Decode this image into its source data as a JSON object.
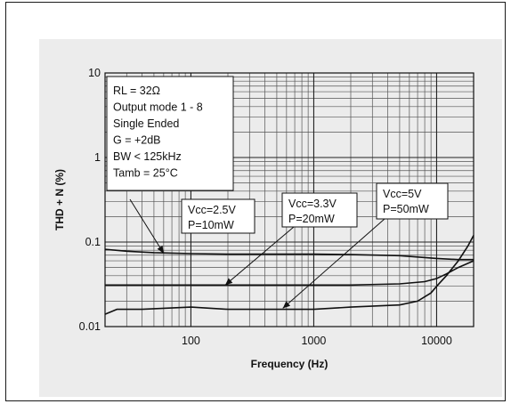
{
  "chart_data": {
    "type": "line",
    "xlabel": "Frequency (Hz)",
    "ylabel": "THD + N (%)",
    "xscale": "log",
    "yscale": "log",
    "xlim": [
      20,
      20000
    ],
    "ylim": [
      0.01,
      10
    ],
    "grid": true,
    "x_tick_labels": [
      "100",
      "1000",
      "10000"
    ],
    "y_tick_labels": [
      "10",
      "1",
      "0.1",
      "0.01"
    ],
    "conditions": [
      "RL = 32Ω",
      "Output mode 1 - 8",
      "Single Ended",
      "G = +2dB",
      "BW < 125kHz",
      "Tamb = 25°C"
    ],
    "series": [
      {
        "name": "Vcc=2.5V P=10mW",
        "label_lines": [
          "Vcc=2.5V",
          "P=10mW"
        ],
        "color": "#111111",
        "x": [
          20,
          30,
          50,
          70,
          100,
          200,
          500,
          1000,
          2000,
          5000,
          10000,
          15000,
          20000
        ],
        "y": [
          0.082,
          0.078,
          0.075,
          0.074,
          0.073,
          0.072,
          0.072,
          0.072,
          0.071,
          0.069,
          0.064,
          0.062,
          0.062
        ]
      },
      {
        "name": "Vcc=3.3V P=20mW",
        "label_lines": [
          "Vcc=3.3V",
          "P=20mW"
        ],
        "color": "#111111",
        "x": [
          20,
          50,
          100,
          200,
          500,
          1000,
          2000,
          5000,
          8000,
          10000,
          12000,
          15000,
          20000
        ],
        "y": [
          0.031,
          0.031,
          0.031,
          0.031,
          0.031,
          0.031,
          0.031,
          0.032,
          0.034,
          0.037,
          0.042,
          0.05,
          0.06
        ]
      },
      {
        "name": "Vcc=5V P=50mW",
        "label_lines": [
          "Vcc=5V",
          "P=50mW"
        ],
        "color": "#111111",
        "x": [
          20,
          25,
          40,
          100,
          200,
          500,
          1000,
          2000,
          5000,
          7000,
          9000,
          10000,
          12000,
          15000,
          18000,
          20000
        ],
        "y": [
          0.014,
          0.016,
          0.016,
          0.017,
          0.016,
          0.016,
          0.016,
          0.017,
          0.018,
          0.02,
          0.025,
          0.03,
          0.04,
          0.06,
          0.09,
          0.12
        ]
      }
    ]
  }
}
